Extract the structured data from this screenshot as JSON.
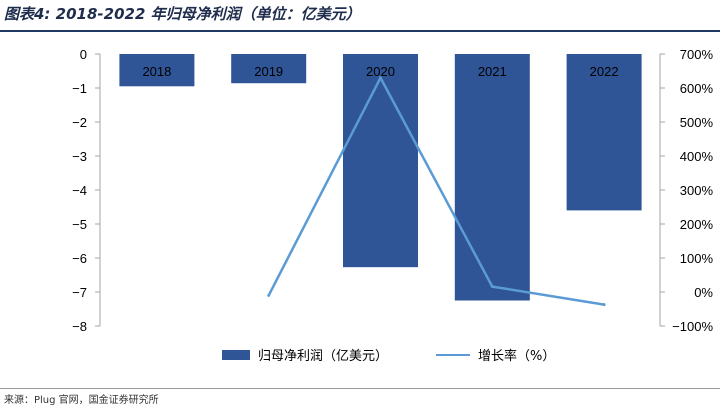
{
  "title": "图表4: 2018-2022 年归母净利润（单位：亿美元）",
  "source": "来源：Plug 官网，国金证券研究所",
  "colors": {
    "bars": "#2f5597",
    "line": "#5b9bd5",
    "axis": "#a6a6a6"
  },
  "chart_data": {
    "type": "bar",
    "categories": [
      "2018",
      "2019",
      "2020",
      "2021",
      "2022"
    ],
    "series": [
      {
        "name": "归母净利润（亿美元）",
        "type": "bar",
        "axis": "left",
        "values": [
          -0.95,
          -0.86,
          -6.27,
          -7.25,
          -4.6
        ]
      },
      {
        "name": "增长率（%）",
        "type": "line",
        "axis": "right",
        "values": [
          null,
          -0.1,
          6.3,
          0.16,
          -0.37
        ]
      }
    ],
    "left_axis": {
      "ylim": [
        -8,
        0
      ],
      "ticks": [
        "0",
        "−1",
        "−2",
        "−3",
        "−4",
        "−5",
        "−6",
        "−7",
        "−8"
      ]
    },
    "right_axis": {
      "ylim": [
        -1,
        7
      ],
      "ticks": [
        "700%",
        "600%",
        "500%",
        "400%",
        "300%",
        "200%",
        "100%",
        "0%",
        "−100%"
      ]
    },
    "legend": "bottom",
    "grid": false
  }
}
